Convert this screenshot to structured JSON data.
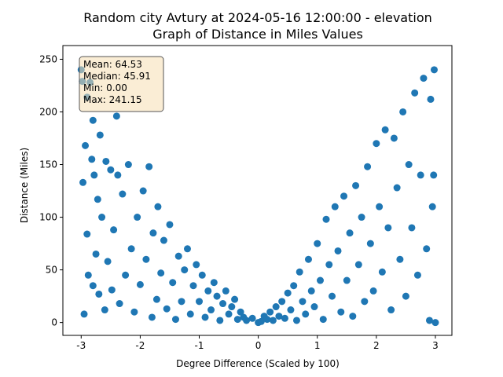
{
  "chart_data": {
    "type": "scatter",
    "title": [
      "Random city Avtury at 2024-05-16 12:00:00  - elevation",
      "Graph of Distance in Miles Values"
    ],
    "xlabel": "Degree Difference (Scaled by 100)",
    "ylabel": "Distance (Miles)",
    "stats_box": [
      "Mean: 64.53",
      "Median: 45.91",
      "Min: 0.00",
      "Max: 241.15"
    ],
    "color": "#1f77b4",
    "xlim": [
      -3.31,
      3.28
    ],
    "ylim": [
      -12.2,
      263
    ],
    "xticks": [
      -3,
      -2,
      -1,
      0,
      1,
      2,
      3
    ],
    "yticks": [
      0,
      50,
      100,
      150,
      200,
      250
    ],
    "x": [
      -3,
      -2.98,
      -2.95,
      -2.93,
      -2.9,
      -2.88,
      -2.85,
      -2.82,
      -2.8,
      -2.78,
      -2.75,
      -2.72,
      -2.7,
      -2.68,
      -2.65,
      -2.6,
      -2.58,
      -2.55,
      -2.5,
      -2.48,
      -2.45,
      -2.4,
      -2.38,
      -2.35,
      -2.3,
      -2.25,
      -2.2,
      -2.15,
      -2.1,
      -2.05,
      -2.0,
      -1.95,
      -1.9,
      -1.85,
      -1.8,
      -1.78,
      -1.72,
      -1.7,
      -1.65,
      -1.6,
      -1.55,
      -1.5,
      -1.45,
      -1.4,
      -1.35,
      -1.3,
      -1.25,
      -1.2,
      -1.15,
      -1.1,
      -1.05,
      -1.0,
      -0.95,
      -0.9,
      -0.85,
      -0.8,
      -0.75,
      -0.7,
      -0.65,
      -0.6,
      -0.55,
      -0.5,
      -0.45,
      -0.4,
      -0.35,
      -0.3,
      -0.25,
      -0.2,
      -0.1,
      0,
      0.05,
      0.1,
      0.15,
      0.2,
      0.25,
      0.3,
      0.35,
      0.4,
      0.45,
      0.5,
      0.55,
      0.6,
      0.65,
      0.7,
      0.75,
      0.8,
      0.85,
      0.9,
      0.95,
      1.0,
      1.05,
      1.1,
      1.15,
      1.2,
      1.25,
      1.3,
      1.35,
      1.4,
      1.45,
      1.5,
      1.55,
      1.6,
      1.65,
      1.7,
      1.75,
      1.8,
      1.85,
      1.9,
      1.95,
      2.0,
      2.05,
      2.1,
      2.15,
      2.2,
      2.25,
      2.3,
      2.35,
      2.4,
      2.45,
      2.5,
      2.55,
      2.6,
      2.65,
      2.7,
      2.75,
      2.8,
      2.85,
      2.9,
      2.92,
      2.95,
      2.98,
      3.0,
      2.97,
      -2.97,
      -2.9,
      -2.8
    ],
    "y": [
      240,
      229,
      8,
      168,
      84,
      45,
      228,
      155,
      35,
      140,
      65,
      117,
      27,
      178,
      100,
      12,
      153,
      58,
      145,
      31,
      88,
      196,
      140,
      18,
      122,
      45,
      150,
      70,
      10,
      100,
      36,
      125,
      60,
      148,
      5,
      85,
      22,
      110,
      47,
      78,
      13,
      93,
      38,
      3,
      63,
      20,
      50,
      70,
      8,
      35,
      55,
      20,
      45,
      5,
      30,
      12,
      38,
      25,
      2,
      18,
      30,
      8,
      15,
      22,
      3,
      10,
      5,
      2,
      4,
      0,
      1,
      6,
      3,
      10,
      2,
      15,
      6,
      20,
      4,
      28,
      12,
      35,
      2,
      48,
      20,
      8,
      60,
      30,
      15,
      75,
      40,
      3,
      98,
      55,
      25,
      110,
      68,
      10,
      120,
      40,
      85,
      6,
      130,
      55,
      100,
      20,
      148,
      75,
      30,
      170,
      110,
      48,
      183,
      90,
      12,
      175,
      128,
      60,
      200,
      25,
      150,
      90,
      218,
      45,
      140,
      232,
      70,
      2,
      212,
      110,
      240,
      0,
      140,
      133,
      214,
      192
    ]
  }
}
